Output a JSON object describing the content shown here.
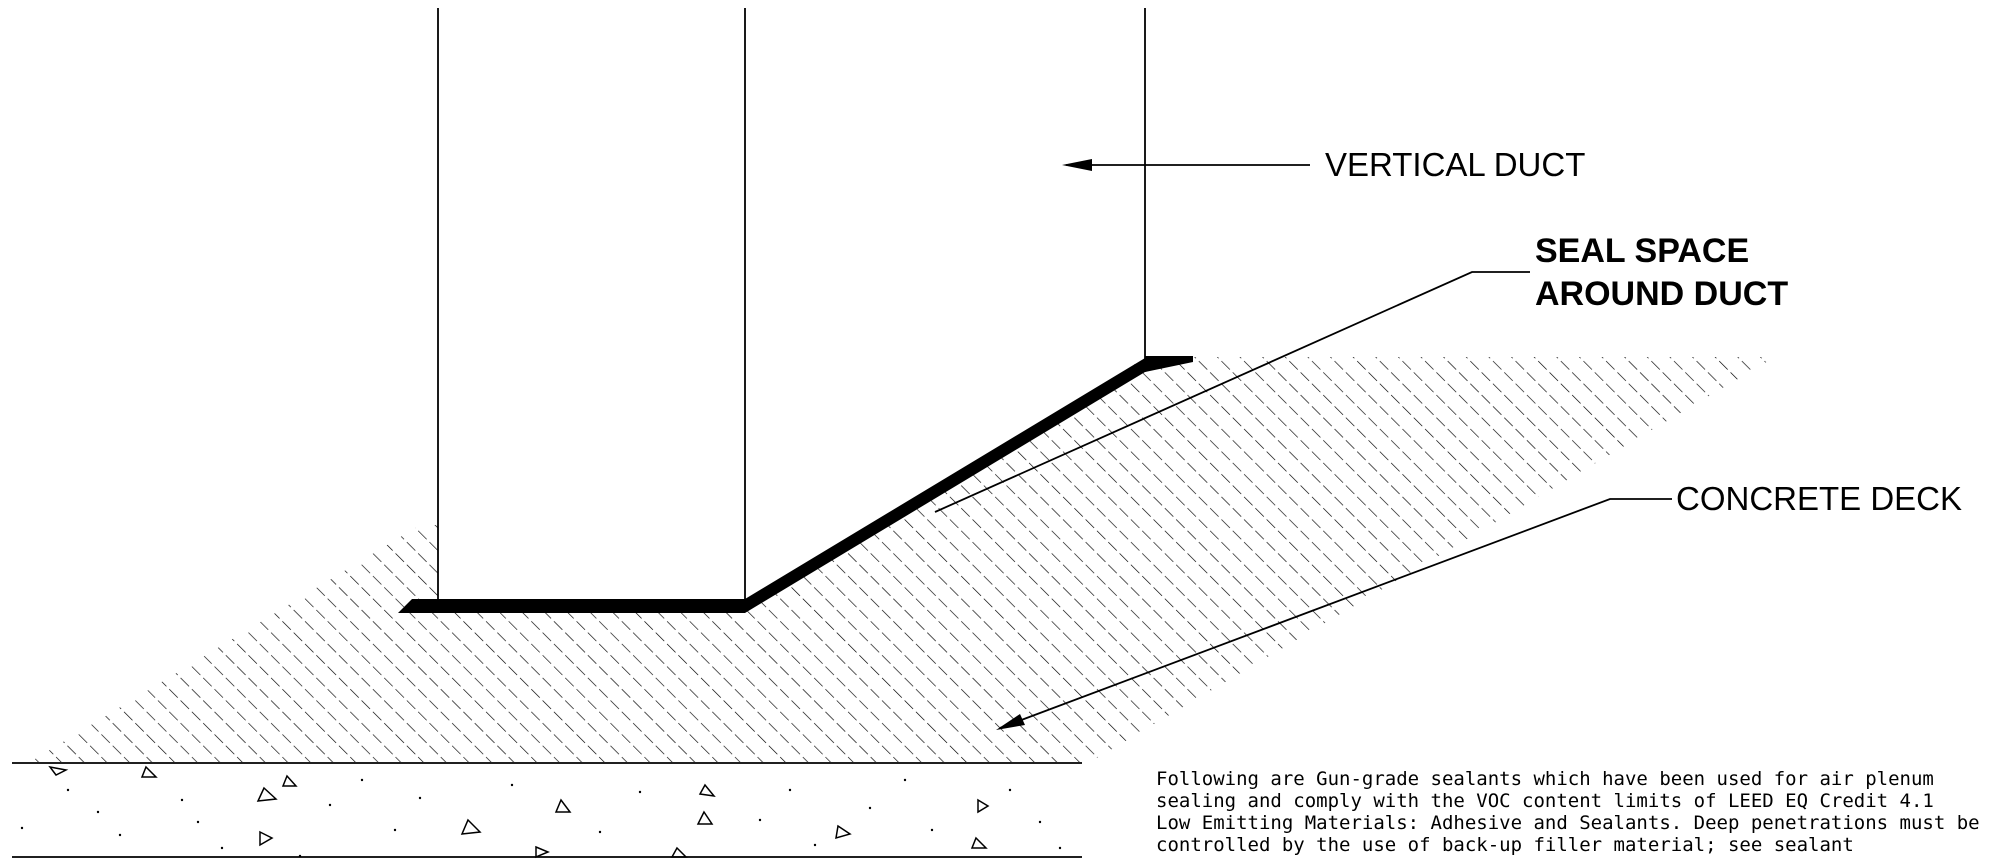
{
  "labels": {
    "vertical_duct": "VERTICAL DUCT",
    "seal_space_line1": "SEAL SPACE",
    "seal_space_line2": "AROUND DUCT",
    "concrete_deck": "CONCRETE DECK"
  },
  "note": {
    "lines": [
      "Following are Gun-grade sealants which have been used for air plenum",
      "sealing and comply with the VOC content limits of LEED EQ Credit 4.1",
      "Low Emitting Materials: Adhesive and Sealants. Deep penetrations must be",
      "controlled by the use of back-up filler material; see sealant"
    ]
  },
  "colors": {
    "line": "#000000",
    "background": "#ffffff"
  }
}
